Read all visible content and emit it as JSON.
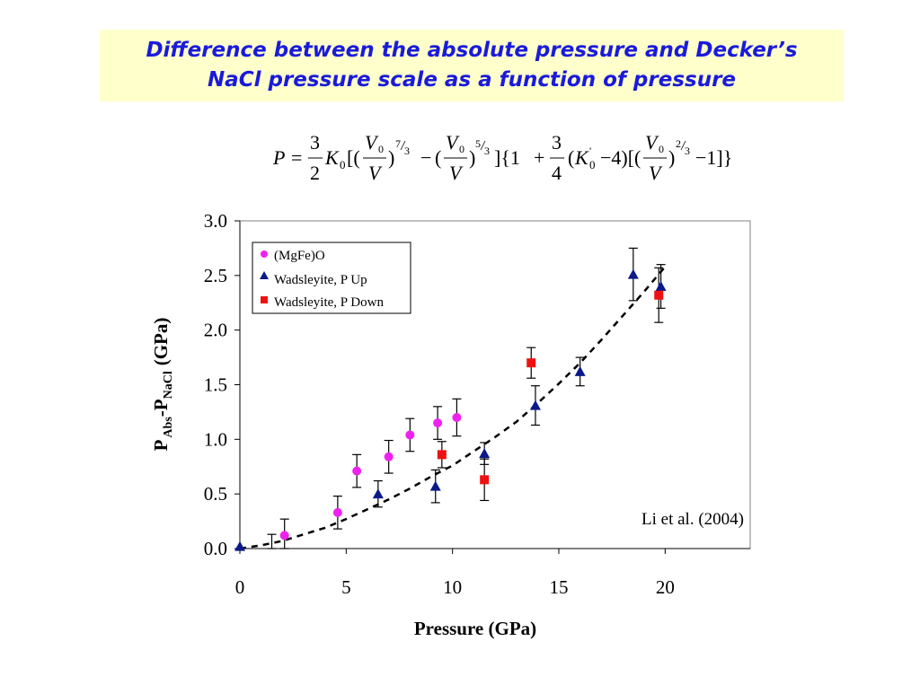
{
  "slide": {
    "title_line1": "Difference between the absolute pressure and Decker’s",
    "title_line2": "NaCl pressure scale as a function of pressure",
    "title_color": "#1a1adb",
    "title_bg": "#ffffcc"
  },
  "equation": {
    "lhs": "P",
    "eq": "=",
    "k0": "K",
    "k0_sub": "0",
    "v0": "V",
    "v0_sub": "0",
    "v": "V",
    "frac_3": "3",
    "frac_2": "2",
    "frac_4": "4",
    "exp_7": "7",
    "exp_5": "5",
    "exp_2": "2",
    "exp_den": "3",
    "one": "1",
    "four": "4",
    "minus": "−",
    "plus": "+",
    "prime": "'",
    "lbr": "[(",
    "rbr": ")",
    "mid": "]{1",
    "lp": "(",
    "minus4": "−4)[(",
    "end": "−1]}"
  },
  "chart_data": {
    "type": "scatter",
    "xlabel": "Pressure (GPa)",
    "ylabel_main": "P",
    "ylabel_sub1": "Abs",
    "ylabel_dash": "-P",
    "ylabel_sub2": "NaCl",
    "ylabel_unit": "(GPa)",
    "xlim": [
      0,
      24
    ],
    "ylim": [
      0,
      3.0
    ],
    "x_ticks": [
      0,
      5,
      10,
      15,
      20
    ],
    "x_tick_labels": [
      "0",
      "5",
      "10",
      "15",
      "20"
    ],
    "y_ticks": [
      0.0,
      0.5,
      1.0,
      1.5,
      2.0,
      2.5,
      3.0
    ],
    "y_tick_labels": [
      "0.0",
      "0.5",
      "1.0",
      "1.5",
      "2.0",
      "2.5",
      "3.0"
    ],
    "grid": false,
    "annotation": "Li et al. (2004)",
    "legend_position": "top-left",
    "series": [
      {
        "name": "(MgFe)O",
        "marker": "circle",
        "color": "#ee22ee",
        "points": [
          {
            "x": 2.1,
            "y": 0.12,
            "err": 0.15
          },
          {
            "x": 4.6,
            "y": 0.33,
            "err": 0.15
          },
          {
            "x": 5.5,
            "y": 0.71,
            "err": 0.15
          },
          {
            "x": 7.0,
            "y": 0.84,
            "err": 0.15
          },
          {
            "x": 8.0,
            "y": 1.04,
            "err": 0.15
          },
          {
            "x": 9.3,
            "y": 1.15,
            "err": 0.15
          },
          {
            "x": 10.2,
            "y": 1.2,
            "err": 0.17
          }
        ]
      },
      {
        "name": "Wadsleyite, P Up",
        "marker": "triangle",
        "color": "#0a1a8a",
        "points": [
          {
            "x": 0.0,
            "y": 0.02,
            "err": 0.0
          },
          {
            "x": 6.5,
            "y": 0.5,
            "err": 0.12
          },
          {
            "x": 9.2,
            "y": 0.57,
            "err": 0.15
          },
          {
            "x": 11.5,
            "y": 0.87,
            "err": 0.1
          },
          {
            "x": 13.9,
            "y": 1.31,
            "err": 0.18
          },
          {
            "x": 16.0,
            "y": 1.62,
            "err": 0.13
          },
          {
            "x": 18.5,
            "y": 2.51,
            "err": 0.24
          },
          {
            "x": 19.8,
            "y": 2.4,
            "err": 0.2
          }
        ]
      },
      {
        "name": "Wadsleyite, P Down",
        "marker": "square",
        "color": "#ee1111",
        "points": [
          {
            "x": 9.5,
            "y": 0.86,
            "err": 0.12
          },
          {
            "x": 11.5,
            "y": 0.63,
            "err": 0.19
          },
          {
            "x": 13.7,
            "y": 1.7,
            "err": 0.14
          },
          {
            "x": 19.7,
            "y": 2.32,
            "err": 0.25
          }
        ]
      }
    ],
    "extra_error_bars": [
      {
        "x": 1.5,
        "y": 0.05,
        "err": 0.08
      }
    ],
    "fit_curve": {
      "style": "dashed",
      "color": "#000000",
      "x": [
        0,
        1,
        2,
        3,
        4,
        5,
        6,
        7,
        8,
        9,
        10,
        11,
        12,
        13,
        14,
        15,
        16,
        17,
        18,
        19,
        20
      ],
      "y": [
        0.0,
        0.03,
        0.07,
        0.13,
        0.19,
        0.27,
        0.36,
        0.45,
        0.55,
        0.66,
        0.76,
        0.89,
        1.02,
        1.16,
        1.33,
        1.51,
        1.7,
        1.91,
        2.13,
        2.35,
        2.58
      ]
    }
  }
}
